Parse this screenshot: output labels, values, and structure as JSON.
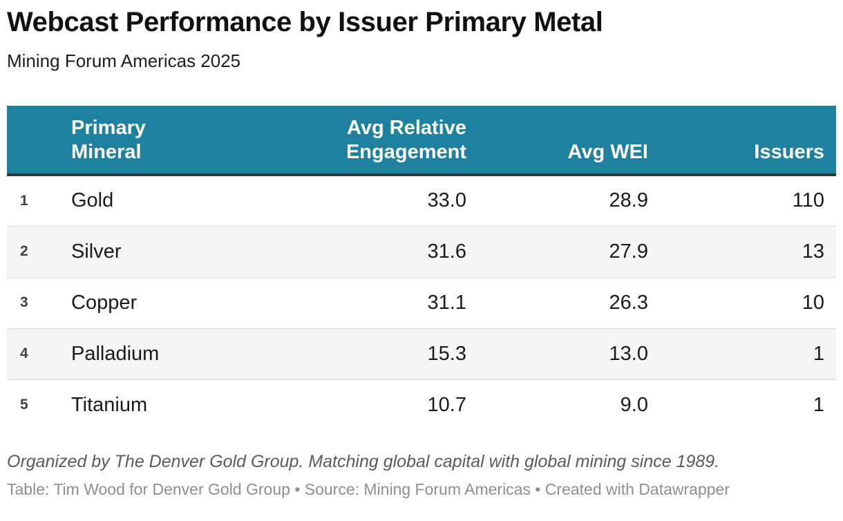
{
  "header": {
    "title": "Webcast Performance by Issuer Primary Metal",
    "subtitle": "Mining Forum Americas 2025"
  },
  "table": {
    "columns": {
      "mineral": "Primary Mineral",
      "engagement": "Avg Relative Engagement",
      "wei": "Avg WEI",
      "issuers": "Issuers"
    },
    "rows": [
      {
        "rank": "1",
        "mineral": "Gold",
        "engagement": "33.0",
        "wei": "28.9",
        "issuers": "110"
      },
      {
        "rank": "2",
        "mineral": "Silver",
        "engagement": "31.6",
        "wei": "27.9",
        "issuers": "13"
      },
      {
        "rank": "3",
        "mineral": "Copper",
        "engagement": "31.1",
        "wei": "26.3",
        "issuers": "10"
      },
      {
        "rank": "4",
        "mineral": "Palladium",
        "engagement": "15.3",
        "wei": "13.0",
        "issuers": "1"
      },
      {
        "rank": "5",
        "mineral": "Titanium",
        "engagement": "10.7",
        "wei": "9.0",
        "issuers": "1"
      }
    ]
  },
  "footer": {
    "byline": "Organized by The Denver Gold Group. Matching global capital with global mining since 1989.",
    "attribution": "Table: Tim Wood for Denver Gold Group • Source: Mining Forum Americas • Created with Datawrapper"
  },
  "colors": {
    "header_bg": "#1E81A0",
    "header_text": "#FFFFFF",
    "header_rule": "#333333",
    "row_alt_bg": "#F5F5F5",
    "row_divider": "#DADADA",
    "body_text": "#1A1A1A",
    "byline_text": "#5A5A5A",
    "attribution_text": "#8E8E8E"
  },
  "chart_data": {
    "type": "table",
    "title": "Webcast Performance by Issuer Primary Metal",
    "subtitle": "Mining Forum Americas 2025",
    "columns": [
      "Primary Mineral",
      "Avg Relative Engagement",
      "Avg WEI",
      "Issuers"
    ],
    "rows": [
      [
        "Gold",
        33.0,
        28.9,
        110
      ],
      [
        "Silver",
        31.6,
        27.9,
        13
      ],
      [
        "Copper",
        31.1,
        26.3,
        10
      ],
      [
        "Palladium",
        15.3,
        13.0,
        1
      ],
      [
        "Titanium",
        10.7,
        9.0,
        1
      ]
    ],
    "notes": "Rows ranked 1-5 by Avg Relative Engagement, zebra-striped table with teal header"
  }
}
